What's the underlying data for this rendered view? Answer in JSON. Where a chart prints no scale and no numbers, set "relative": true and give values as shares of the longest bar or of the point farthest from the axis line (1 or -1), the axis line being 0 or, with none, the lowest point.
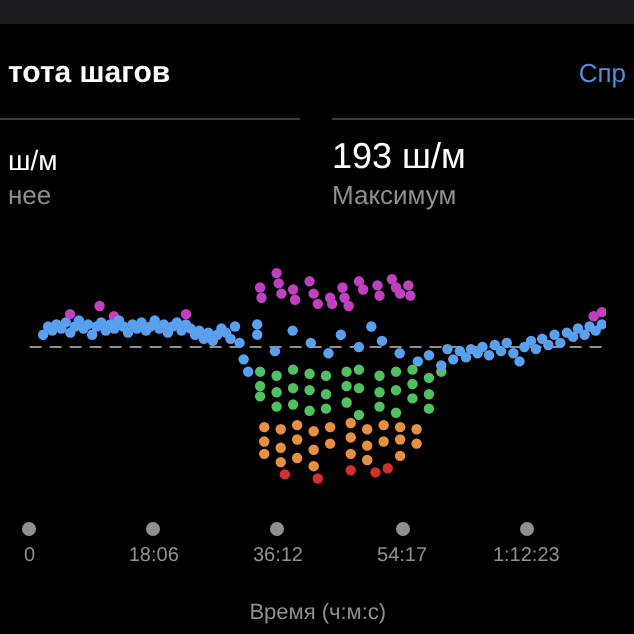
{
  "chart_data": {
    "type": "scatter",
    "title": "тота шагов",
    "xlabel": "Время (ч:м:с)",
    "relative": true,
    "legend": false,
    "grid": false,
    "marker": "circle",
    "annotations": [
      "Спр",
      "ш/м",
      "нее",
      "193 ш/м",
      "Максимум"
    ],
    "xlim": [
      0,
      84
    ],
    "xticks": [
      {
        "value": 0,
        "label": "0"
      },
      {
        "value": 18.1,
        "label": "18:06"
      },
      {
        "value": 36.2,
        "label": "36:12"
      },
      {
        "value": 54.283,
        "label": "54:17"
      },
      {
        "value": 72.383,
        "label": "1:12:23"
      }
    ],
    "ref_lines": [
      {
        "axis": "y",
        "value": 0.64,
        "label": null,
        "color": "#8e8e93",
        "line_style": "dashed"
      }
    ],
    "series": [
      {
        "color": "#5aa0f0",
        "x": [
          1.98,
          2.7,
          3.3,
          3.9,
          4.62,
          5.28,
          5.94,
          6.6,
          7.2,
          7.86,
          8.52,
          9.12,
          9.78,
          10.44,
          11.1,
          11.76,
          12.36,
          13.02,
          13.68,
          14.34,
          15,
          15.66,
          16.32,
          16.98,
          17.58,
          18.24,
          18.9,
          19.56,
          20.16,
          20.82,
          21.48,
          22.14,
          22.8,
          23.46,
          24.12,
          24.72,
          25.38,
          26.04,
          26.7,
          27.36,
          27.96,
          28.62,
          29.28,
          29.94,
          30.6,
          31.2,
          31.86,
          33.18,
          33.18,
          35.76,
          38.34,
          40.98,
          43.56,
          45.36,
          48,
          49.8,
          51.36,
          53.94,
          56.58,
          58.2,
          60,
          60.9,
          61.74,
          62.7,
          63.6,
          64.32,
          65.28,
          66,
          66.96,
          67.8,
          68.7,
          69.54,
          70.5,
          71.4,
          72.12,
          73.08,
          73.8,
          74.7,
          75.6,
          76.5,
          77.34,
          78.3,
          79.2,
          79.92,
          80.88,
          81.6,
          82.5,
          83.4
        ],
        "values": [
          0.7,
          0.74,
          0.72,
          0.75,
          0.73,
          0.76,
          0.71,
          0.74,
          0.77,
          0.73,
          0.75,
          0.7,
          0.74,
          0.76,
          0.72,
          0.75,
          0.73,
          0.77,
          0.74,
          0.71,
          0.75,
          0.73,
          0.76,
          0.72,
          0.74,
          0.77,
          0.73,
          0.75,
          0.71,
          0.74,
          0.76,
          0.72,
          0.75,
          0.73,
          0.7,
          0.72,
          0.68,
          0.71,
          0.67,
          0.7,
          0.73,
          0.71,
          0.68,
          0.74,
          0.66,
          0.58,
          0.52,
          0.75,
          0.7,
          0.62,
          0.72,
          0.66,
          0.61,
          0.7,
          0.64,
          0.74,
          0.67,
          0.61,
          0.57,
          0.6,
          0.55,
          0.63,
          0.58,
          0.62,
          0.59,
          0.63,
          0.61,
          0.64,
          0.6,
          0.65,
          0.62,
          0.66,
          0.61,
          0.57,
          0.64,
          0.67,
          0.63,
          0.68,
          0.65,
          0.7,
          0.66,
          0.71,
          0.69,
          0.73,
          0.7,
          0.74,
          0.72,
          0.75
        ]
      },
      {
        "color": "#c040c0",
        "x": [
          5.9,
          10.2,
          12.3,
          22.8,
          33.6,
          33.8,
          36,
          36.3,
          36.7,
          38.4,
          38.7,
          40.8,
          41.4,
          42,
          43.8,
          44.1,
          45.6,
          45.9,
          46.5,
          48,
          48.6,
          50.7,
          51,
          52.8,
          53.4,
          54,
          55.2,
          55.5,
          82.2,
          83.4
        ],
        "values": [
          0.8,
          0.84,
          0.79,
          0.8,
          0.93,
          0.88,
          1.0,
          0.95,
          0.9,
          0.92,
          0.87,
          0.96,
          0.9,
          0.85,
          0.88,
          0.85,
          0.93,
          0.88,
          0.84,
          0.96,
          0.92,
          0.94,
          0.89,
          0.97,
          0.93,
          0.9,
          0.94,
          0.89,
          0.79,
          0.81
        ]
      },
      {
        "color": "#50c060",
        "x": [
          33.6,
          33.6,
          33.6,
          36,
          36,
          36,
          38.4,
          38.4,
          38.4,
          40.8,
          40.8,
          40.8,
          43.2,
          43.2,
          43.2,
          46.2,
          46.2,
          46.2,
          48,
          48,
          48,
          51,
          51,
          51,
          53.4,
          53.4,
          53.4,
          55.8,
          55.8,
          55.8,
          58.2,
          58.2,
          58.2,
          60
        ],
        "values": [
          0.52,
          0.45,
          0.4,
          0.5,
          0.42,
          0.35,
          0.53,
          0.44,
          0.36,
          0.51,
          0.43,
          0.33,
          0.5,
          0.41,
          0.34,
          0.52,
          0.45,
          0.37,
          0.53,
          0.44,
          0.31,
          0.5,
          0.42,
          0.35,
          0.52,
          0.43,
          0.32,
          0.53,
          0.46,
          0.39,
          0.49,
          0.41,
          0.34,
          0.52
        ]
      },
      {
        "color": "#e89040",
        "x": [
          34.2,
          34.2,
          34.2,
          36.6,
          36.6,
          36.6,
          39,
          39,
          39,
          41.4,
          41.4,
          41.4,
          43.8,
          43.8,
          46.8,
          46.8,
          46.8,
          49.2,
          49.2,
          49.2,
          51.6,
          51.6,
          54,
          54,
          54,
          56.4,
          56.4
        ],
        "values": [
          0.25,
          0.18,
          0.12,
          0.24,
          0.15,
          0.08,
          0.26,
          0.19,
          0.1,
          0.23,
          0.14,
          0.06,
          0.25,
          0.17,
          0.27,
          0.2,
          0.12,
          0.24,
          0.16,
          0.09,
          0.26,
          0.18,
          0.25,
          0.19,
          0.11,
          0.24,
          0.17
        ]
      },
      {
        "color": "#d03030",
        "x": [
          37.2,
          42,
          46.8,
          50.4,
          52.2
        ],
        "values": [
          0.02,
          0.0,
          0.04,
          0.03,
          0.05
        ]
      }
    ]
  }
}
